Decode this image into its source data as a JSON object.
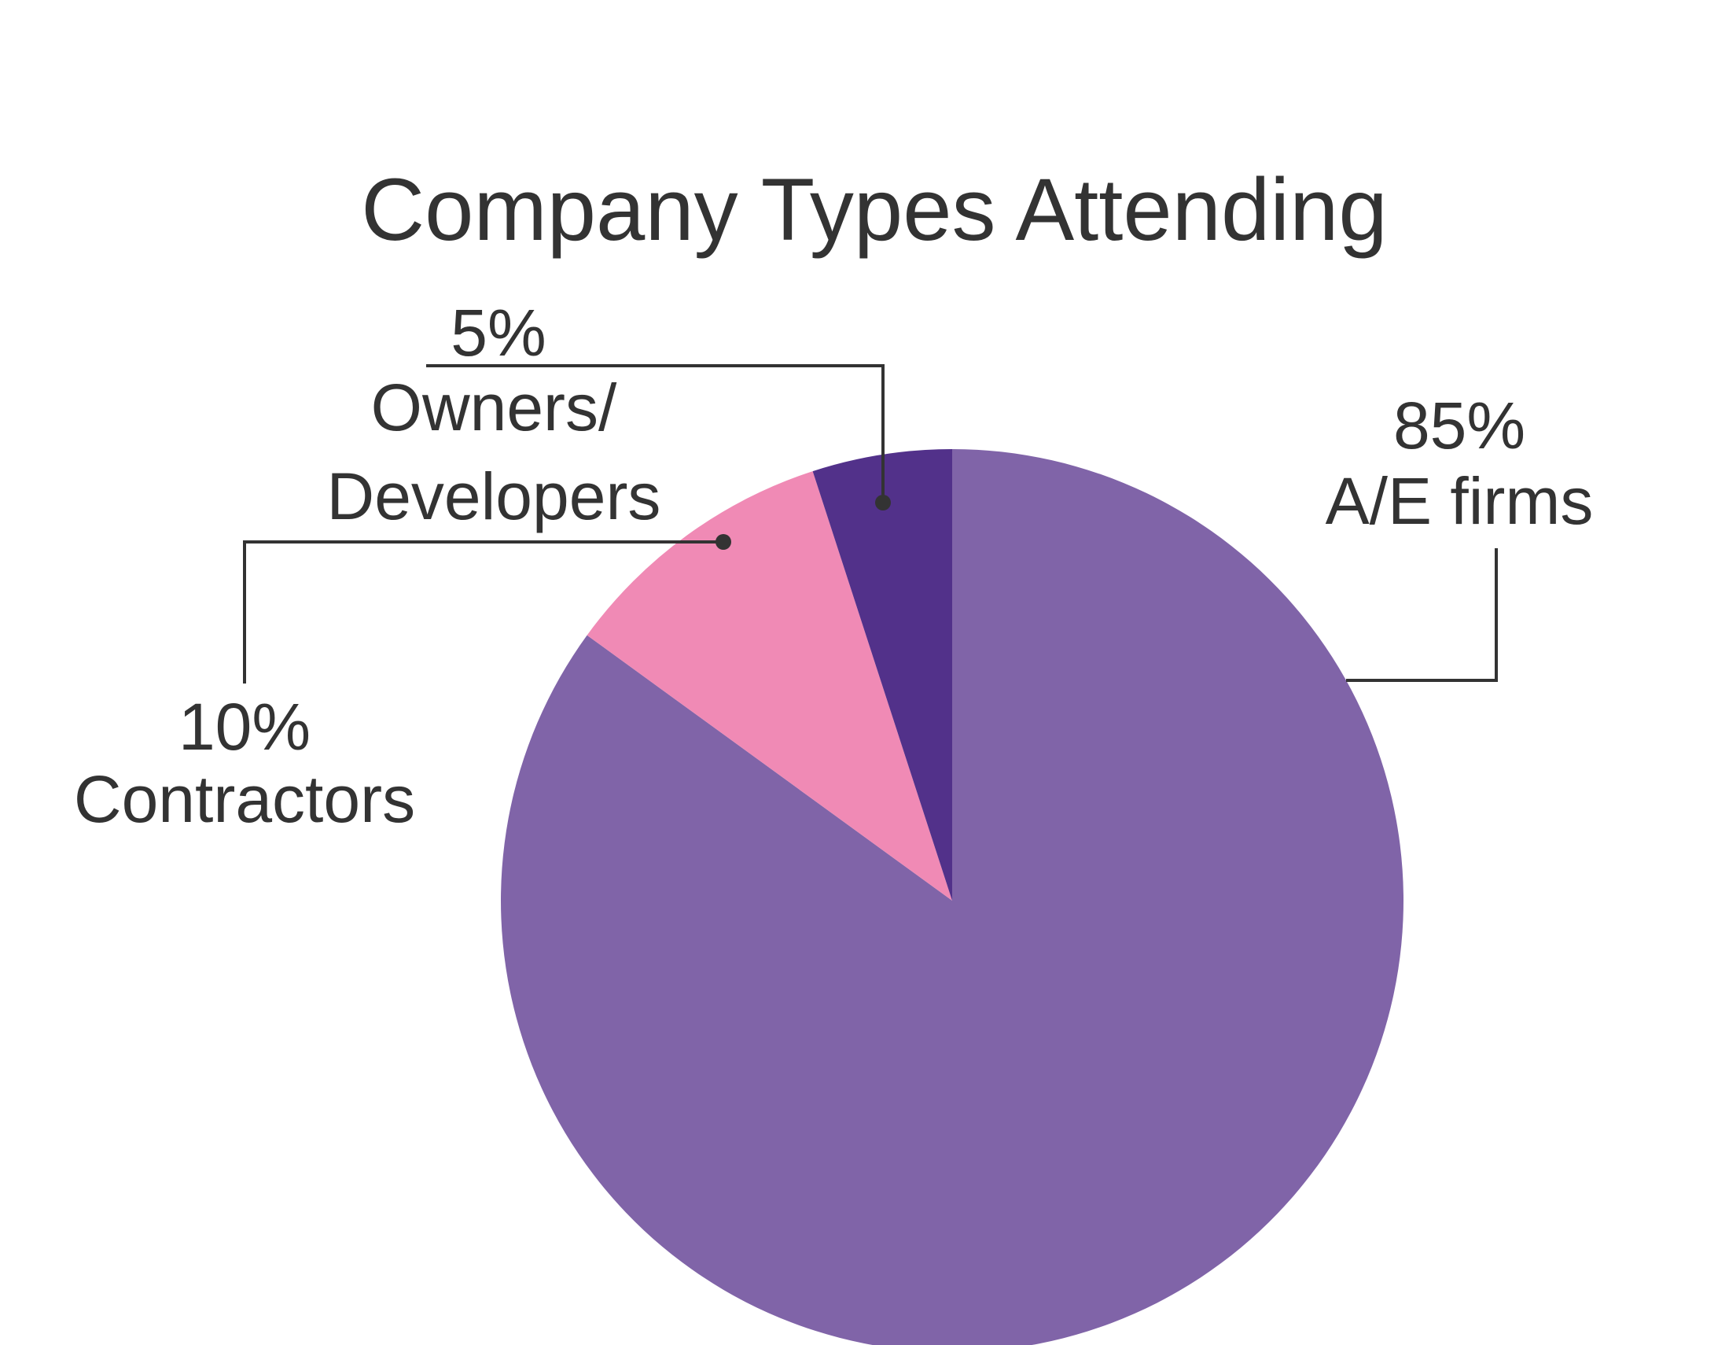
{
  "chart_data": {
    "type": "pie",
    "title": "Company Types Attending",
    "start_angle_deg": 0,
    "direction": "clockwise",
    "slices": [
      {
        "key": "ae",
        "value": 85,
        "value_label": "85%",
        "label_lines": [
          "A/E firms"
        ],
        "color": "#8064A8"
      },
      {
        "key": "contractors",
        "value": 10,
        "value_label": "10%",
        "label_lines": [
          "Contractors"
        ],
        "color": "#F08AB5"
      },
      {
        "key": "owners",
        "value": 5,
        "value_label": "5%",
        "label_lines": [
          "Owners/",
          "Developers"
        ],
        "color": "#52318A"
      }
    ]
  }
}
